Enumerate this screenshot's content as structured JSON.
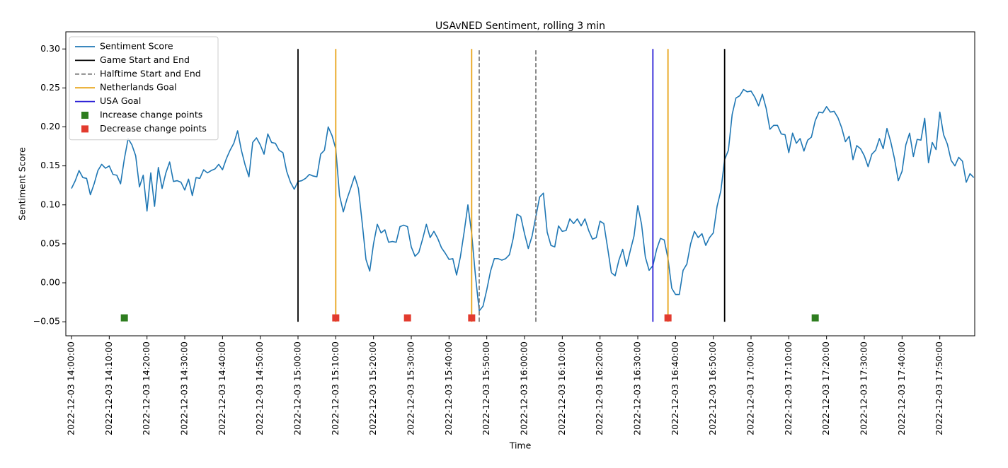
{
  "chart_data": {
    "type": "line",
    "title": "USAvNED Sentiment, rolling 3 min",
    "xlabel": "Time",
    "ylabel": "Sentiment Score",
    "legend": "upper left",
    "x": [
      "2022-12-03 14:00:00",
      "2022-12-03 14:01:00",
      "2022-12-03 14:02:00",
      "2022-12-03 14:03:00",
      "2022-12-03 14:04:00",
      "2022-12-03 14:05:00",
      "2022-12-03 14:06:00",
      "2022-12-03 14:07:00",
      "2022-12-03 14:08:00",
      "2022-12-03 14:09:00",
      "2022-12-03 14:10:00",
      "2022-12-03 14:11:00",
      "2022-12-03 14:12:00",
      "2022-12-03 14:13:00",
      "2022-12-03 14:14:00",
      "2022-12-03 14:15:00",
      "2022-12-03 14:16:00",
      "2022-12-03 14:17:00",
      "2022-12-03 14:18:00",
      "2022-12-03 14:19:00",
      "2022-12-03 14:20:00",
      "2022-12-03 14:21:00",
      "2022-12-03 14:22:00",
      "2022-12-03 14:23:00",
      "2022-12-03 14:24:00",
      "2022-12-03 14:25:00",
      "2022-12-03 14:26:00",
      "2022-12-03 14:27:00",
      "2022-12-03 14:28:00",
      "2022-12-03 14:29:00",
      "2022-12-03 14:30:00",
      "2022-12-03 14:31:00",
      "2022-12-03 14:32:00",
      "2022-12-03 14:33:00",
      "2022-12-03 14:34:00",
      "2022-12-03 14:35:00",
      "2022-12-03 14:36:00",
      "2022-12-03 14:37:00",
      "2022-12-03 14:38:00",
      "2022-12-03 14:39:00",
      "2022-12-03 14:40:00",
      "2022-12-03 14:41:00",
      "2022-12-03 14:42:00",
      "2022-12-03 14:43:00",
      "2022-12-03 14:44:00",
      "2022-12-03 14:45:00",
      "2022-12-03 14:46:00",
      "2022-12-03 14:47:00",
      "2022-12-03 14:48:00",
      "2022-12-03 14:49:00",
      "2022-12-03 14:50:00",
      "2022-12-03 14:51:00",
      "2022-12-03 14:52:00",
      "2022-12-03 14:53:00",
      "2022-12-03 14:54:00",
      "2022-12-03 14:55:00",
      "2022-12-03 14:56:00",
      "2022-12-03 14:57:00",
      "2022-12-03 14:58:00",
      "2022-12-03 14:59:00",
      "2022-12-03 15:00:00",
      "2022-12-03 15:01:00",
      "2022-12-03 15:02:00",
      "2022-12-03 15:03:00",
      "2022-12-03 15:04:00",
      "2022-12-03 15:05:00",
      "2022-12-03 15:06:00",
      "2022-12-03 15:07:00",
      "2022-12-03 15:08:00",
      "2022-12-03 15:09:00",
      "2022-12-03 15:10:00",
      "2022-12-03 15:11:00",
      "2022-12-03 15:12:00",
      "2022-12-03 15:13:00",
      "2022-12-03 15:14:00",
      "2022-12-03 15:15:00",
      "2022-12-03 15:16:00",
      "2022-12-03 15:17:00",
      "2022-12-03 15:18:00",
      "2022-12-03 15:19:00",
      "2022-12-03 15:20:00",
      "2022-12-03 15:21:00",
      "2022-12-03 15:22:00",
      "2022-12-03 15:23:00",
      "2022-12-03 15:24:00",
      "2022-12-03 15:25:00",
      "2022-12-03 15:26:00",
      "2022-12-03 15:27:00",
      "2022-12-03 15:28:00",
      "2022-12-03 15:29:00",
      "2022-12-03 15:30:00",
      "2022-12-03 15:31:00",
      "2022-12-03 15:32:00",
      "2022-12-03 15:33:00",
      "2022-12-03 15:34:00",
      "2022-12-03 15:35:00",
      "2022-12-03 15:36:00",
      "2022-12-03 15:37:00",
      "2022-12-03 15:38:00",
      "2022-12-03 15:39:00",
      "2022-12-03 15:40:00",
      "2022-12-03 15:41:00",
      "2022-12-03 15:42:00",
      "2022-12-03 15:43:00",
      "2022-12-03 15:44:00",
      "2022-12-03 15:45:00",
      "2022-12-03 15:46:00",
      "2022-12-03 15:47:00",
      "2022-12-03 15:48:00",
      "2022-12-03 15:49:00",
      "2022-12-03 15:50:00",
      "2022-12-03 15:51:00",
      "2022-12-03 15:52:00",
      "2022-12-03 15:53:00",
      "2022-12-03 15:54:00",
      "2022-12-03 15:55:00",
      "2022-12-03 15:56:00",
      "2022-12-03 15:57:00",
      "2022-12-03 15:58:00",
      "2022-12-03 15:59:00",
      "2022-12-03 16:00:00",
      "2022-12-03 16:01:00",
      "2022-12-03 16:02:00",
      "2022-12-03 16:03:00",
      "2022-12-03 16:04:00",
      "2022-12-03 16:05:00",
      "2022-12-03 16:06:00",
      "2022-12-03 16:07:00",
      "2022-12-03 16:08:00",
      "2022-12-03 16:09:00",
      "2022-12-03 16:10:00",
      "2022-12-03 16:11:00",
      "2022-12-03 16:12:00",
      "2022-12-03 16:13:00",
      "2022-12-03 16:14:00",
      "2022-12-03 16:15:00",
      "2022-12-03 16:16:00",
      "2022-12-03 16:17:00",
      "2022-12-03 16:18:00",
      "2022-12-03 16:19:00",
      "2022-12-03 16:20:00",
      "2022-12-03 16:21:00",
      "2022-12-03 16:22:00",
      "2022-12-03 16:23:00",
      "2022-12-03 16:24:00",
      "2022-12-03 16:25:00",
      "2022-12-03 16:26:00",
      "2022-12-03 16:27:00",
      "2022-12-03 16:28:00",
      "2022-12-03 16:29:00",
      "2022-12-03 16:30:00",
      "2022-12-03 16:31:00",
      "2022-12-03 16:32:00",
      "2022-12-03 16:33:00",
      "2022-12-03 16:34:00",
      "2022-12-03 16:35:00",
      "2022-12-03 16:36:00",
      "2022-12-03 16:37:00",
      "2022-12-03 16:38:00",
      "2022-12-03 16:39:00",
      "2022-12-03 16:40:00",
      "2022-12-03 16:41:00",
      "2022-12-03 16:42:00",
      "2022-12-03 16:43:00",
      "2022-12-03 16:44:00",
      "2022-12-03 16:45:00",
      "2022-12-03 16:46:00",
      "2022-12-03 16:47:00",
      "2022-12-03 16:48:00",
      "2022-12-03 16:49:00",
      "2022-12-03 16:50:00",
      "2022-12-03 16:51:00",
      "2022-12-03 16:52:00",
      "2022-12-03 16:53:00",
      "2022-12-03 16:54:00",
      "2022-12-03 16:55:00",
      "2022-12-03 16:56:00",
      "2022-12-03 16:57:00",
      "2022-12-03 16:58:00",
      "2022-12-03 16:59:00",
      "2022-12-03 17:00:00",
      "2022-12-03 17:01:00",
      "2022-12-03 17:02:00",
      "2022-12-03 17:03:00",
      "2022-12-03 17:04:00",
      "2022-12-03 17:05:00",
      "2022-12-03 17:06:00",
      "2022-12-03 17:07:00",
      "2022-12-03 17:08:00",
      "2022-12-03 17:09:00",
      "2022-12-03 17:10:00",
      "2022-12-03 17:11:00",
      "2022-12-03 17:12:00",
      "2022-12-03 17:13:00",
      "2022-12-03 17:14:00",
      "2022-12-03 17:15:00",
      "2022-12-03 17:16:00",
      "2022-12-03 17:17:00",
      "2022-12-03 17:18:00",
      "2022-12-03 17:19:00",
      "2022-12-03 17:20:00",
      "2022-12-03 17:21:00",
      "2022-12-03 17:22:00",
      "2022-12-03 17:23:00",
      "2022-12-03 17:24:00",
      "2022-12-03 17:25:00",
      "2022-12-03 17:26:00",
      "2022-12-03 17:27:00",
      "2022-12-03 17:28:00",
      "2022-12-03 17:29:00",
      "2022-12-03 17:30:00",
      "2022-12-03 17:31:00",
      "2022-12-03 17:32:00",
      "2022-12-03 17:33:00",
      "2022-12-03 17:34:00",
      "2022-12-03 17:35:00",
      "2022-12-03 17:36:00",
      "2022-12-03 17:37:00",
      "2022-12-03 17:38:00",
      "2022-12-03 17:39:00",
      "2022-12-03 17:40:00",
      "2022-12-03 17:41:00",
      "2022-12-03 17:42:00",
      "2022-12-03 17:43:00",
      "2022-12-03 17:44:00",
      "2022-12-03 17:45:00",
      "2022-12-03 17:46:00",
      "2022-12-03 17:47:00",
      "2022-12-03 17:48:00",
      "2022-12-03 17:49:00",
      "2022-12-03 17:50:00",
      "2022-12-03 17:51:00",
      "2022-12-03 17:52:00",
      "2022-12-03 17:53:00",
      "2022-12-03 17:54:00",
      "2022-12-03 17:55:00",
      "2022-12-03 17:56:00",
      "2022-12-03 17:57:00",
      "2022-12-03 17:58:00",
      "2022-12-03 17:59:00"
    ],
    "series": [
      {
        "name": "Sentiment Score",
        "color": "#1f77b4",
        "values": [
          0.121,
          0.131,
          0.144,
          0.135,
          0.134,
          0.113,
          0.127,
          0.144,
          0.152,
          0.147,
          0.15,
          0.139,
          0.138,
          0.127,
          0.159,
          0.185,
          0.177,
          0.163,
          0.123,
          0.138,
          0.092,
          0.141,
          0.098,
          0.148,
          0.121,
          0.141,
          0.155,
          0.13,
          0.131,
          0.129,
          0.119,
          0.133,
          0.112,
          0.135,
          0.134,
          0.145,
          0.141,
          0.144,
          0.146,
          0.152,
          0.145,
          0.159,
          0.17,
          0.179,
          0.195,
          0.17,
          0.151,
          0.136,
          0.18,
          0.186,
          0.177,
          0.165,
          0.191,
          0.18,
          0.179,
          0.17,
          0.167,
          0.143,
          0.129,
          0.12,
          0.13,
          0.131,
          0.134,
          0.139,
          0.137,
          0.136,
          0.165,
          0.17,
          0.2,
          0.189,
          0.172,
          0.112,
          0.091,
          0.108,
          0.122,
          0.137,
          0.121,
          0.077,
          0.03,
          0.015,
          0.05,
          0.075,
          0.064,
          0.068,
          0.052,
          0.053,
          0.052,
          0.072,
          0.074,
          0.072,
          0.046,
          0.034,
          0.039,
          0.056,
          0.075,
          0.058,
          0.066,
          0.057,
          0.045,
          0.038,
          0.03,
          0.031,
          0.01,
          0.033,
          0.065,
          0.1,
          0.063,
          0.009,
          -0.036,
          -0.03,
          -0.009,
          0.015,
          0.031,
          0.031,
          0.029,
          0.031,
          0.036,
          0.057,
          0.088,
          0.085,
          0.063,
          0.044,
          0.06,
          0.085,
          0.11,
          0.115,
          0.065,
          0.048,
          0.046,
          0.073,
          0.066,
          0.067,
          0.082,
          0.076,
          0.082,
          0.073,
          0.082,
          0.067,
          0.056,
          0.058,
          0.079,
          0.076,
          0.045,
          0.013,
          0.009,
          0.029,
          0.043,
          0.021,
          0.041,
          0.06,
          0.099,
          0.075,
          0.033,
          0.016,
          0.022,
          0.043,
          0.057,
          0.055,
          0.031,
          -0.007,
          -0.015,
          -0.015,
          0.016,
          0.024,
          0.05,
          0.066,
          0.058,
          0.063,
          0.048,
          0.058,
          0.064,
          0.098,
          0.118,
          0.158,
          0.17,
          0.216,
          0.237,
          0.24,
          0.248,
          0.245,
          0.246,
          0.238,
          0.227,
          0.242,
          0.224,
          0.197,
          0.202,
          0.202,
          0.191,
          0.19,
          0.167,
          0.192,
          0.179,
          0.185,
          0.169,
          0.183,
          0.187,
          0.208,
          0.219,
          0.218,
          0.226,
          0.219,
          0.22,
          0.212,
          0.199,
          0.181,
          0.188,
          0.158,
          0.176,
          0.172,
          0.163,
          0.149,
          0.165,
          0.17,
          0.185,
          0.172,
          0.198,
          0.181,
          0.159,
          0.131,
          0.143,
          0.177,
          0.192,
          0.162,
          0.184,
          0.183,
          0.211,
          0.154,
          0.18,
          0.171,
          0.219,
          0.19,
          0.178,
          0.157,
          0.15,
          0.161,
          0.156,
          0.129,
          0.14,
          0.135
        ]
      }
    ],
    "vlines": [
      {
        "name": "Game Start and End",
        "color": "#000000",
        "dashed": false,
        "x": [
          "2022-12-03 15:00:00",
          "2022-12-03 16:53:00"
        ],
        "ymin": -0.05,
        "ymax": 0.3
      },
      {
        "name": "Halftime Start and End",
        "color": "#808080",
        "dashed": true,
        "x": [
          "2022-12-03 15:48:00",
          "2022-12-03 16:03:00"
        ],
        "ymin": -0.05,
        "ymax": 0.3
      },
      {
        "name": "Netherlands Goal",
        "color": "#e8a317",
        "dashed": false,
        "x": [
          "2022-12-03 15:10:00",
          "2022-12-03 15:46:00",
          "2022-12-03 16:38:00"
        ],
        "ymin": -0.05,
        "ymax": 0.3
      },
      {
        "name": "USA Goal",
        "color": "#2a1fd6",
        "dashed": false,
        "x": [
          "2022-12-03 16:34:00"
        ],
        "ymin": -0.05,
        "ymax": 0.3
      }
    ],
    "points": [
      {
        "name": "Increase change points",
        "color": "#2e7d1f",
        "x": [
          "2022-12-03 14:14:00",
          "2022-12-03 17:17:00"
        ],
        "values": [
          -0.045,
          -0.045
        ]
      },
      {
        "name": "Decrease change points",
        "color": "#e23b2e",
        "x": [
          "2022-12-03 15:10:00",
          "2022-12-03 15:29:00",
          "2022-12-03 15:46:00",
          "2022-12-03 16:38:00"
        ],
        "values": [
          -0.045,
          -0.045,
          -0.045,
          -0.045
        ]
      }
    ],
    "xlim": [
      "2022-12-03 13:58:30",
      "2022-12-03 17:59:15"
    ],
    "xticks": [
      "2022-12-03 14:00:00",
      "2022-12-03 14:10:00",
      "2022-12-03 14:20:00",
      "2022-12-03 14:30:00",
      "2022-12-03 14:40:00",
      "2022-12-03 14:50:00",
      "2022-12-03 15:00:00",
      "2022-12-03 15:10:00",
      "2022-12-03 15:20:00",
      "2022-12-03 15:30:00",
      "2022-12-03 15:40:00",
      "2022-12-03 15:50:00",
      "2022-12-03 16:00:00",
      "2022-12-03 16:10:00",
      "2022-12-03 16:20:00",
      "2022-12-03 16:30:00",
      "2022-12-03 16:40:00",
      "2022-12-03 16:50:00",
      "2022-12-03 17:00:00",
      "2022-12-03 17:10:00",
      "2022-12-03 17:20:00",
      "2022-12-03 17:30:00",
      "2022-12-03 17:40:00",
      "2022-12-03 17:50:00"
    ],
    "ylim": [
      -0.068,
      0.322
    ],
    "yticks": [
      {
        "value": -0.05,
        "label": "−0.05"
      },
      {
        "value": 0,
        "label": "0.00"
      },
      {
        "value": 0.05,
        "label": "0.05"
      },
      {
        "value": 0.1,
        "label": "0.10"
      },
      {
        "value": 0.15,
        "label": "0.15"
      },
      {
        "value": 0.2,
        "label": "0.20"
      },
      {
        "value": 0.25,
        "label": "0.25"
      },
      {
        "value": 0.3,
        "label": "0.30"
      }
    ]
  }
}
